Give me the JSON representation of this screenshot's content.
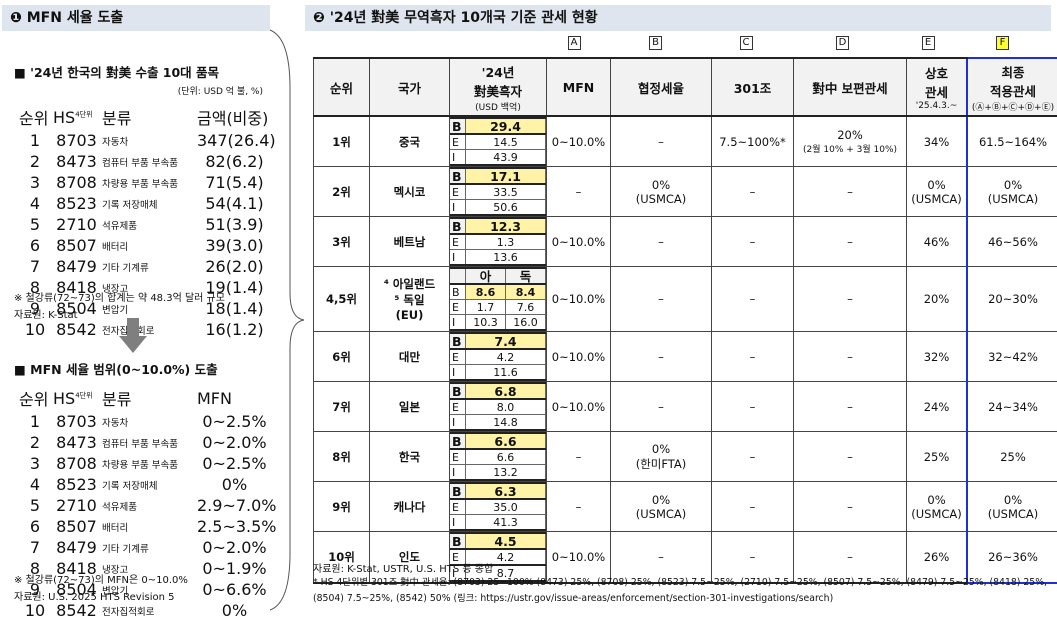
{
  "left": {
    "header": "❶ MFN 세율 도출",
    "table1": {
      "title": "■ '24년 한국의 對美 수출 10대 품목",
      "unit": "(단위: USD 억 불, %)",
      "headers": [
        "순위",
        {
          "text": "HS",
          "sup": "4단위"
        },
        "분류",
        "금액(비중)"
      ],
      "rows": [
        [
          "1",
          "8703",
          "자동차",
          "347(26.4)"
        ],
        [
          "2",
          "8473",
          "컴퓨터 부품 부속품",
          "82(6.2)"
        ],
        [
          "3",
          "8708",
          "차량용 부품 부속품",
          "71(5.4)"
        ],
        [
          "4",
          "8523",
          "기록 저장매체",
          "54(4.1)"
        ],
        [
          "5",
          "2710",
          "석유제품",
          "51(3.9)"
        ],
        [
          "6",
          "8507",
          "배터리",
          "39(3.0)"
        ],
        [
          "7",
          "8479",
          "기타 기계류",
          "26(2.0)"
        ],
        [
          "8",
          "8418",
          "냉장고",
          "19(1.4)"
        ],
        [
          "9",
          "8504",
          "변압기",
          "18(1.4)"
        ],
        [
          "10",
          "8542",
          "전자집적회로",
          "16(1.2)"
        ]
      ]
    },
    "note1": "※ 철강류(72~73)의 합계는 약 48.3억 달러 규모",
    "source1": "자료원: K-Stat",
    "table2": {
      "title": "■ MFN 세율 범위(0~10.0%) 도출",
      "headers": [
        "순위",
        {
          "text": "HS",
          "sup": "4단위"
        },
        "분류",
        "MFN"
      ],
      "rows": [
        [
          "1",
          "8703",
          "자동차",
          "0~2.5%"
        ],
        [
          "2",
          "8473",
          "컴퓨터 부품 부속품",
          "0~2.0%"
        ],
        [
          "3",
          "8708",
          "차량용 부품 부속품",
          "0~2.5%"
        ],
        [
          "4",
          "8523",
          "기록 저장매체",
          "0%"
        ],
        [
          "5",
          "2710",
          "석유제품",
          "2.9~7.0%"
        ],
        [
          "6",
          "8507",
          "배터리",
          "2.5~3.5%"
        ],
        [
          "7",
          "8479",
          "기타 기계류",
          "0~2.0%"
        ],
        [
          "8",
          "8418",
          "냉장고",
          "0~1.9%"
        ],
        [
          "9",
          "8504",
          "변압기",
          "0~6.6%"
        ],
        [
          "10",
          "8542",
          "전자집적회로",
          "0%"
        ]
      ]
    },
    "note2": "※ 철강류(72~73)의 MFN은 0~10.0%",
    "source2": "자료원: U.S. 2025 HTS Revision 5"
  },
  "right": {
    "header": "❷ '24년 對美 무역흑자 10개국 기준 관세 현황",
    "letters": [
      "A",
      "B",
      "C",
      "D",
      "E",
      "F"
    ],
    "headers": [
      {
        "lines": [
          "순위"
        ]
      },
      {
        "lines": [
          "국가"
        ]
      },
      {
        "lines": [
          "'24년",
          "對美흑자"
        ],
        "sub": "(USD 백억)"
      },
      {
        "lines": [
          "MFN"
        ]
      },
      {
        "lines": [
          "협정세율"
        ]
      },
      {
        "lines": [
          "301조"
        ]
      },
      {
        "lines": [
          "對中 보편관세"
        ]
      },
      {
        "lines": [
          "상호",
          "관세"
        ],
        "sub": "'25.4.3.~"
      },
      {
        "lines": [
          "최종",
          "적용관세"
        ],
        "sub": "(Ⓐ+Ⓑ+Ⓒ+Ⓓ+Ⓔ)"
      }
    ],
    "surplus_labels": [
      "B",
      "E",
      "I"
    ],
    "rows": [
      {
        "rank": "1위",
        "country": [
          "중국"
        ],
        "surplus": {
          "B": [
            "29.4"
          ],
          "E": [
            "14.5"
          ],
          "I": [
            "43.9"
          ]
        },
        "mfn": [
          "0~10.0%"
        ],
        "fta": [
          "–"
        ],
        "s301": [
          "7.5~100%*"
        ],
        "china": [
          "20%",
          "(2월 10% + 3월 10%)"
        ],
        "reciprocal": [
          "34%"
        ],
        "final": [
          "61.5~164%"
        ]
      },
      {
        "rank": "2위",
        "country": [
          "멕시코"
        ],
        "surplus": {
          "B": [
            "17.1"
          ],
          "E": [
            "33.5"
          ],
          "I": [
            "50.6"
          ]
        },
        "mfn": [
          "–"
        ],
        "fta": [
          "0%",
          "(USMCA)"
        ],
        "s301": [
          "–"
        ],
        "china": [
          "–"
        ],
        "reciprocal": [
          "0%",
          "(USMCA)"
        ],
        "final": [
          "0%",
          "(USMCA)"
        ]
      },
      {
        "rank": "3위",
        "country": [
          "베트남"
        ],
        "surplus": {
          "B": [
            "12.3"
          ],
          "E": [
            "1.3"
          ],
          "I": [
            "13.6"
          ]
        },
        "mfn": [
          "0~10.0%"
        ],
        "fta": [
          "–"
        ],
        "s301": [
          "–"
        ],
        "china": [
          "–"
        ],
        "reciprocal": [
          "46%"
        ],
        "final": [
          "46~56%"
        ]
      },
      {
        "rank": "4,5위",
        "country": [
          "⁴ 아일랜드",
          "⁵ 독일",
          "(EU)"
        ],
        "surplus": {
          "cols": [
            "아",
            "독"
          ],
          "B": [
            "8.6",
            "8.4"
          ],
          "E": [
            "1.7",
            "7.6"
          ],
          "I": [
            "10.3",
            "16.0"
          ]
        },
        "mfn": [
          "0~10.0%"
        ],
        "fta": [
          "–"
        ],
        "s301": [
          "–"
        ],
        "china": [
          "–"
        ],
        "reciprocal": [
          "20%"
        ],
        "final": [
          "20~30%"
        ]
      },
      {
        "rank": "6위",
        "country": [
          "대만"
        ],
        "surplus": {
          "B": [
            "7.4"
          ],
          "E": [
            "4.2"
          ],
          "I": [
            "11.6"
          ]
        },
        "mfn": [
          "0~10.0%"
        ],
        "fta": [
          "–"
        ],
        "s301": [
          "–"
        ],
        "china": [
          "–"
        ],
        "reciprocal": [
          "32%"
        ],
        "final": [
          "32~42%"
        ]
      },
      {
        "rank": "7위",
        "country": [
          "일본"
        ],
        "surplus": {
          "B": [
            "6.8"
          ],
          "E": [
            "8.0"
          ],
          "I": [
            "14.8"
          ]
        },
        "mfn": [
          "0~10.0%"
        ],
        "fta": [
          "–"
        ],
        "s301": [
          "–"
        ],
        "china": [
          "–"
        ],
        "reciprocal": [
          "24%"
        ],
        "final": [
          "24~34%"
        ]
      },
      {
        "rank": "8위",
        "country": [
          "한국"
        ],
        "surplus": {
          "B": [
            "6.6"
          ],
          "E": [
            "6.6"
          ],
          "I": [
            "13.2"
          ]
        },
        "mfn": [
          "–"
        ],
        "fta": [
          "0%",
          "(한미FTA)"
        ],
        "s301": [
          "–"
        ],
        "china": [
          "–"
        ],
        "reciprocal": [
          "25%"
        ],
        "final": [
          "25%"
        ]
      },
      {
        "rank": "9위",
        "country": [
          "캐나다"
        ],
        "surplus": {
          "B": [
            "6.3"
          ],
          "E": [
            "35.0"
          ],
          "I": [
            "41.3"
          ]
        },
        "mfn": [
          "–"
        ],
        "fta": [
          "0%",
          "(USMCA)"
        ],
        "s301": [
          "–"
        ],
        "china": [
          "–"
        ],
        "reciprocal": [
          "0%",
          "(USMCA)"
        ],
        "final": [
          "0%",
          "(USMCA)"
        ]
      },
      {
        "rank": "10위",
        "country": [
          "인도"
        ],
        "surplus": {
          "B": [
            "4.5"
          ],
          "E": [
            "4.2"
          ],
          "I": [
            "8.7"
          ]
        },
        "mfn": [
          "0~10.0%"
        ],
        "fta": [
          "–"
        ],
        "s301": [
          "–"
        ],
        "china": [
          "–"
        ],
        "reciprocal": [
          "26%"
        ],
        "final": [
          "26~36%"
        ]
      }
    ],
    "source": "자료원: K-Stat, USTR, U.S. HTS 등 종합",
    "footnote": "* HS 4단위별 301조 對中 관세율: (8703) 25~100% (8473) 25%, (8708) 25%, (8523) 7.5~25%, (2710) 7.5~25%, (8507) 7.5~25%, (8479) 7.5~25%, (8418) 25%, (8504) 7.5~25%, (8542) 50% (링크: https://ustr.gov/issue-areas/enforcement/section-301-investigations/search)"
  }
}
